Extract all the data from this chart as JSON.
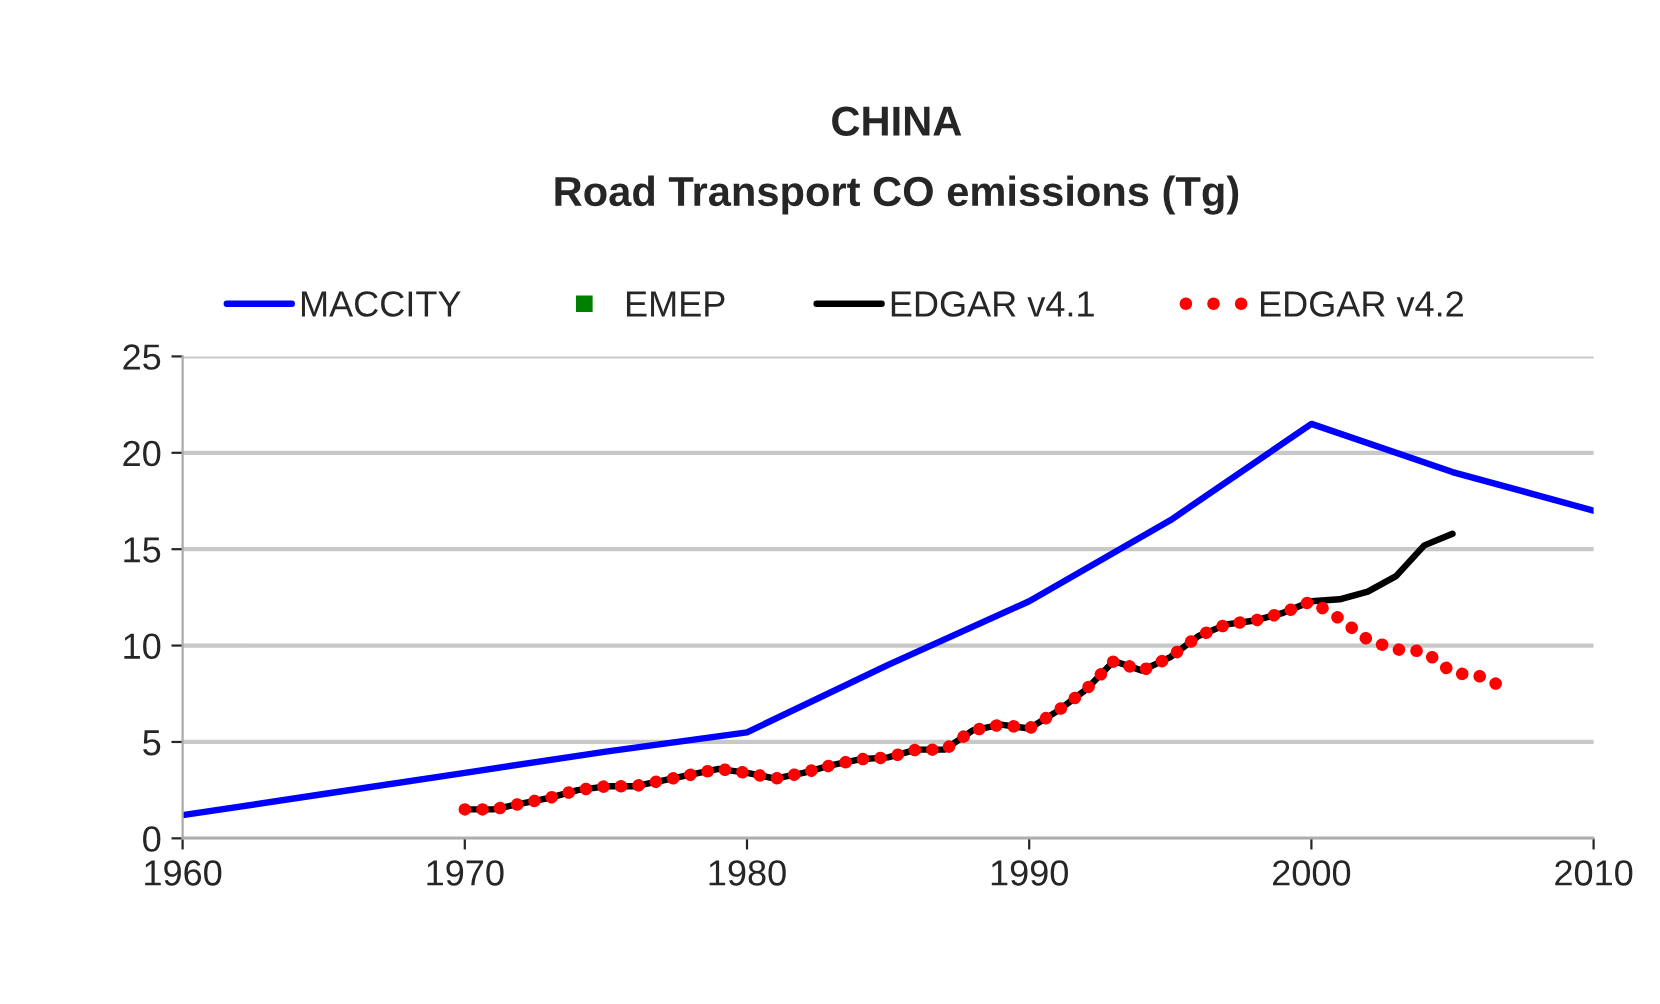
{
  "chart_data": {
    "type": "line",
    "title": "CHINA",
    "subtitle": "Road Transport CO emissions (Tg)",
    "xlim": [
      1960,
      2010
    ],
    "xticks": [
      1960,
      1970,
      1980,
      1990,
      2000,
      2010
    ],
    "ylim": [
      0,
      25
    ],
    "yticks": [
      0,
      5,
      10,
      15,
      20,
      25
    ],
    "grid": "y",
    "legend": "top",
    "series": [
      {
        "name": "MACCITY",
        "color": "#0000ff",
        "line_style": "solid",
        "x": [
          1960,
          1965,
          1970,
          1975,
          1980,
          1985,
          1990,
          1995,
          2000,
          2005,
          2010
        ],
        "values": [
          1.2,
          2.3,
          3.4,
          4.5,
          5.5,
          9.0,
          12.3,
          16.5,
          21.5,
          19.0,
          17.0
        ]
      },
      {
        "name": "EMEP",
        "color": "#008000",
        "type": "scatter",
        "marker": "square"
      },
      {
        "name": "EDGAR v4.1",
        "color": "#000000",
        "line_style": "solid",
        "x": [
          1970,
          1971,
          1972,
          1973,
          1974,
          1975,
          1976,
          1977,
          1978,
          1979,
          1980,
          1981,
          1982,
          1983,
          1984,
          1985,
          1986,
          1987,
          1988,
          1989,
          1990,
          1991,
          1992,
          1993,
          1994,
          1995,
          1996,
          1997,
          1998,
          1999,
          2000,
          2001,
          2002,
          2003,
          2004,
          2005
        ],
        "values": [
          1.5,
          1.5,
          1.8,
          2.1,
          2.5,
          2.7,
          2.7,
          3.0,
          3.3,
          3.6,
          3.4,
          3.1,
          3.4,
          3.8,
          4.1,
          4.2,
          4.6,
          4.6,
          5.6,
          5.9,
          5.7,
          6.6,
          7.7,
          9.2,
          8.7,
          9.4,
          10.5,
          11.1,
          11.3,
          11.7,
          12.3,
          12.4,
          12.8,
          13.6,
          15.2,
          15.8
        ]
      },
      {
        "name": "EDGAR v4.2",
        "color": "#ff0000",
        "line_style": "dotted",
        "x": [
          1970,
          1971,
          1972,
          1973,
          1974,
          1975,
          1976,
          1977,
          1978,
          1979,
          1980,
          1981,
          1982,
          1983,
          1984,
          1985,
          1986,
          1987,
          1988,
          1989,
          1990,
          1991,
          1992,
          1993,
          1994,
          1995,
          1996,
          1997,
          1998,
          1999,
          2000,
          2001,
          2002,
          2003,
          2004,
          2005,
          2006,
          2007
        ],
        "values": [
          1.5,
          1.5,
          1.8,
          2.1,
          2.5,
          2.7,
          2.7,
          3.0,
          3.3,
          3.6,
          3.4,
          3.1,
          3.4,
          3.8,
          4.1,
          4.2,
          4.6,
          4.6,
          5.6,
          5.9,
          5.7,
          6.6,
          7.7,
          9.2,
          8.7,
          9.4,
          10.5,
          11.1,
          11.3,
          11.7,
          12.3,
          11.4,
          10.3,
          9.8,
          9.7,
          8.6,
          8.4,
          7.7
        ]
      }
    ]
  }
}
